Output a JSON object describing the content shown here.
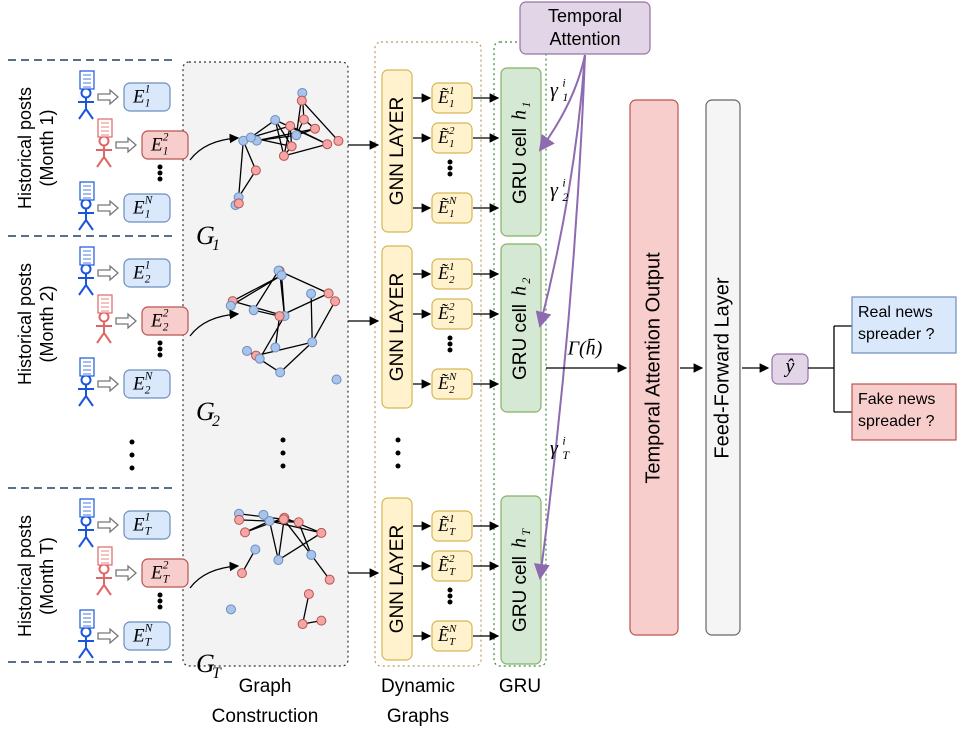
{
  "temporal_attention": [
    "Temporal",
    "Attention"
  ],
  "months": [
    {
      "label": [
        "Historical posts",
        "(Month 1)"
      ],
      "graph": {
        "base": "G",
        "sub": "1"
      },
      "users": [
        {
          "base": "E",
          "sub": "1",
          "sup": "1"
        },
        {
          "base": "E",
          "sub": "1",
          "sup": "2"
        },
        {
          "base": "E",
          "sub": "1",
          "sup": "N"
        }
      ],
      "gnn": "GNN LAYER",
      "dynamic": [
        {
          "base": "Ẽ",
          "sub": "1",
          "sup": "1"
        },
        {
          "base": "Ẽ",
          "sub": "1",
          "sup": "2"
        },
        {
          "base": "Ẽ",
          "sub": "1",
          "sup": "N"
        }
      ],
      "gru": {
        "text": "GRU cell",
        "base": "h",
        "sub": "1"
      },
      "gamma": {
        "base": "γ",
        "sup": "i",
        "sub": "1"
      }
    },
    {
      "label": [
        "Historical posts",
        "(Month 2)"
      ],
      "graph": {
        "base": "G",
        "sub": "2"
      },
      "users": [
        {
          "base": "E",
          "sub": "2",
          "sup": "1"
        },
        {
          "base": "E",
          "sub": "2",
          "sup": "2"
        },
        {
          "base": "E",
          "sub": "2",
          "sup": "N"
        }
      ],
      "gnn": "GNN LAYER",
      "dynamic": [
        {
          "base": "Ẽ",
          "sub": "2",
          "sup": "1"
        },
        {
          "base": "Ẽ",
          "sub": "2",
          "sup": "2"
        },
        {
          "base": "Ẽ",
          "sub": "2",
          "sup": "N"
        }
      ],
      "gru": {
        "text": "GRU cell",
        "base": "h",
        "sub": "2"
      },
      "gamma": {
        "base": "γ",
        "sup": "i",
        "sub": "2"
      }
    },
    {
      "label": [
        "Historical posts",
        "(Month T)"
      ],
      "graph": {
        "base": "G",
        "sub": "T"
      },
      "users": [
        {
          "base": "E",
          "sub": "T",
          "sup": "1"
        },
        {
          "base": "E",
          "sub": "T",
          "sup": "2"
        },
        {
          "base": "E",
          "sub": "T",
          "sup": "N"
        }
      ],
      "gnn": "GNN LAYER",
      "dynamic": [
        {
          "base": "Ẽ",
          "sub": "T",
          "sup": "1"
        },
        {
          "base": "Ẽ",
          "sub": "T",
          "sup": "2"
        },
        {
          "base": "Ẽ",
          "sub": "T",
          "sup": "N"
        }
      ],
      "gru": {
        "text": "GRU cell",
        "base": "h",
        "sub": "T"
      },
      "gamma": {
        "base": "γ",
        "sup": "i",
        "sub": "T"
      }
    }
  ],
  "attention_output_symbol": "Γ(h̄)",
  "attention_output": "Temporal Attention Output",
  "feed_forward": "Feed-Forward Layer",
  "prediction": "ŷ",
  "outcomes": [
    [
      "Real news",
      "spreader ?"
    ],
    [
      "Fake news",
      "spreader ?"
    ]
  ],
  "sections": [
    [
      "Graph",
      "Construction"
    ],
    [
      "Dynamic",
      "Graphs"
    ],
    [
      "GRU"
    ]
  ]
}
